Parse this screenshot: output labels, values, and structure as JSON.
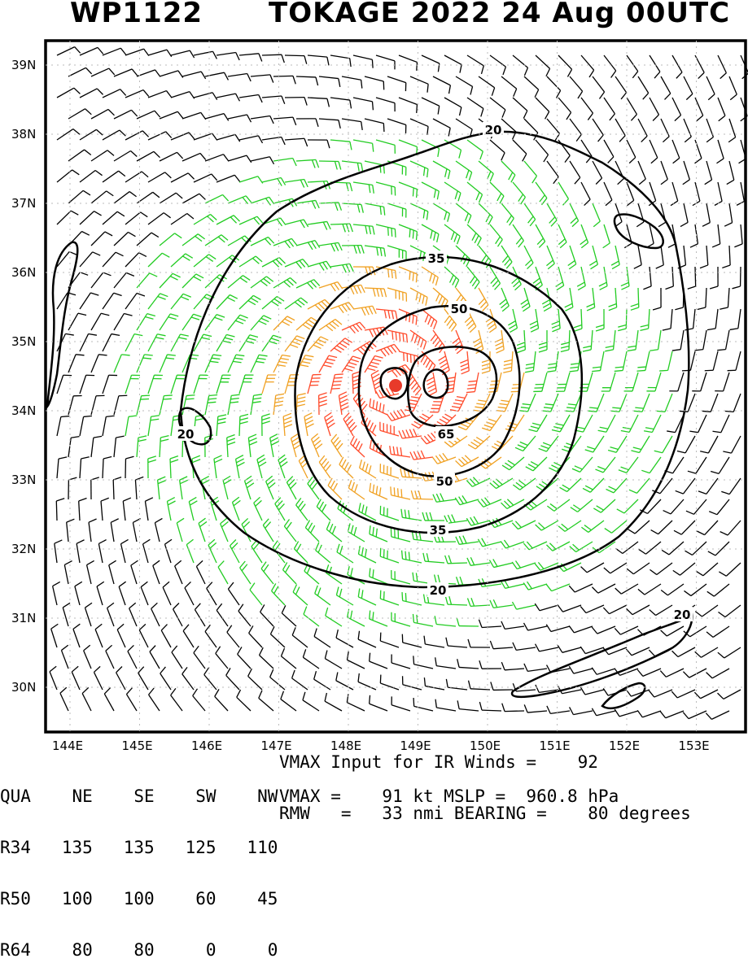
{
  "title": {
    "id": "WP1122",
    "main": "TOKAGE 2022 24 Aug 00UTC"
  },
  "axes": {
    "lat_labels": [
      "39N",
      "38N",
      "37N",
      "36N",
      "35N",
      "34N",
      "33N",
      "32N",
      "31N",
      "30N"
    ],
    "lon_labels": [
      "144E",
      "145E",
      "146E",
      "147E",
      "148E",
      "149E",
      "150E",
      "151E",
      "152E",
      "153E"
    ]
  },
  "contour_labels": [
    "20",
    "35",
    "50",
    "65",
    "50",
    "35",
    "20",
    "20",
    "20"
  ],
  "storm_center": {
    "lat": 34.4,
    "lon": 148.7,
    "color": "#e83a2a"
  },
  "colors": {
    "calm": "#000000",
    "r34": "#22cc22",
    "r50": "#f0a020",
    "r64": "#ff4a2a"
  },
  "table": {
    "header": [
      "QUA",
      "NE",
      "SE",
      "SW",
      "NW"
    ],
    "rows": [
      [
        "R34",
        "135",
        "135",
        "125",
        "110"
      ],
      [
        "R50",
        "100",
        "100",
        "60",
        "45"
      ],
      [
        "R64",
        "80",
        "80",
        "0",
        "0"
      ]
    ]
  },
  "info": {
    "line1": "VMAX Input for IR Winds =    92",
    "line2": "VMAX =    91 kt MSLP =  960.8 hPa",
    "line3": "RMW   =   33 nmi BEARING =    80 degrees"
  }
}
